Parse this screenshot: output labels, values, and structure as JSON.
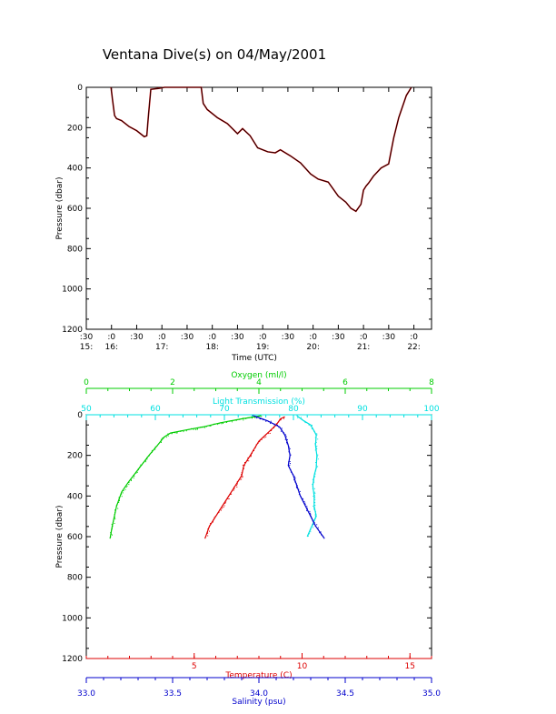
{
  "title": "Ventana Dive(s) on 04/May/2001",
  "colors": {
    "axis": "#000000",
    "trace_dark": "#000000",
    "trace_red": "#cc0000",
    "oxygen": "#00cc00",
    "light": "#00e0e0",
    "temperature": "#dd0000",
    "salinity": "#0000cc"
  },
  "chart_data": [
    {
      "type": "line",
      "title": "Ventana Dive(s) on 04/May/2001",
      "xlabel": "Time (UTC)",
      "ylabel": "Pressure (dbar)",
      "xlim": [
        15.5,
        22.35
      ],
      "ylim": [
        1200,
        0
      ],
      "yticks": [
        "0",
        "200",
        "400",
        "600",
        "800",
        "1000",
        "1200"
      ],
      "xticks_minute": [
        ":30",
        ":0",
        ":30",
        ":0",
        ":30",
        ":0",
        ":30",
        ":0",
        ":30",
        ":0",
        ":30",
        ":0",
        ":30",
        ":0"
      ],
      "xticks_hour": [
        "15:",
        "16:",
        "17:",
        "18:",
        "19:",
        "20:",
        "21:",
        "22:"
      ],
      "series": [
        {
          "x": [
            15.99,
            16.02,
            16.06,
            16.1,
            16.2,
            16.35,
            16.5,
            16.65,
            16.7,
            16.73,
            16.78,
            16.95,
            17.05,
            17.15,
            17.4,
            17.78,
            17.82,
            17.9,
            18.1,
            18.3,
            18.5,
            18.6,
            18.75,
            18.9,
            19.1,
            19.25,
            19.35,
            19.55,
            19.75,
            19.95,
            20.1,
            20.3,
            20.5,
            20.65,
            20.75,
            20.85,
            20.95,
            21.0,
            21.05,
            21.1,
            21.2,
            21.35,
            21.5,
            21.6,
            21.7,
            21.85,
            21.95
          ],
          "y": [
            0,
            60,
            140,
            155,
            165,
            195,
            215,
            245,
            240,
            150,
            10,
            5,
            0,
            -5,
            -5,
            0,
            80,
            110,
            150,
            180,
            230,
            205,
            240,
            300,
            320,
            325,
            310,
            340,
            375,
            430,
            455,
            470,
            540,
            570,
            600,
            615,
            580,
            510,
            490,
            475,
            440,
            400,
            380,
            250,
            150,
            40,
            0
          ]
        }
      ]
    },
    {
      "type": "scatter",
      "ylabel": "Pressure (dbar)",
      "ylim": [
        1200,
        0
      ],
      "yticks": [
        "0",
        "200",
        "400",
        "600",
        "800",
        "1000",
        "1200"
      ],
      "axes": {
        "oxygen": {
          "label": "Oxygen (ml/l)",
          "range": [
            0,
            8
          ],
          "ticks": [
            "0",
            "2",
            "4",
            "6",
            "8"
          ]
        },
        "light": {
          "label": "Light Transmission (%)",
          "range": [
            50,
            100
          ],
          "ticks": [
            "50",
            "60",
            "70",
            "80",
            "90",
            "100"
          ]
        },
        "temperature": {
          "label": "Temperature (C)",
          "range": [
            0,
            16
          ],
          "ticks": [
            "5",
            "10",
            "15"
          ]
        },
        "salinity": {
          "label": "Salinity (psu)",
          "range": [
            33.0,
            35.0
          ],
          "ticks": [
            "33.0",
            "33.5",
            "34.0",
            "34.5",
            "35.0"
          ]
        }
      },
      "series": [
        {
          "name": "Oxygen (ml/l)",
          "x": [
            4.05,
            3.6,
            3.1,
            2.7,
            2.3,
            1.95,
            1.8,
            1.65,
            1.45,
            1.2,
            0.98,
            0.82,
            0.7,
            0.6,
            0.55
          ],
          "y": [
            5,
            20,
            40,
            60,
            75,
            90,
            110,
            150,
            200,
            270,
            330,
            380,
            450,
            550,
            610
          ]
        },
        {
          "name": "Light Transmission (%)",
          "x": [
            80.5,
            81.5,
            82.5,
            83.0,
            83.3,
            83.2,
            83.4,
            83.3,
            83.0,
            82.8,
            83.0,
            83.0,
            83.3,
            82.5,
            82.0
          ],
          "y": [
            5,
            30,
            50,
            80,
            100,
            150,
            200,
            260,
            300,
            350,
            400,
            450,
            500,
            560,
            600
          ]
        },
        {
          "name": "Temperature (C)",
          "x": [
            9.2,
            9.0,
            8.8,
            8.5,
            8.0,
            7.6,
            7.3,
            7.2,
            6.9,
            6.6,
            6.3,
            6.0,
            5.7,
            5.5
          ],
          "y": [
            10,
            20,
            50,
            80,
            130,
            200,
            250,
            300,
            350,
            400,
            450,
            500,
            550,
            610
          ]
        },
        {
          "name": "Salinity (psu)",
          "x": [
            33.97,
            34.05,
            34.12,
            34.15,
            34.17,
            34.18,
            34.17,
            34.2,
            34.22,
            34.24,
            34.27,
            34.3,
            34.33,
            34.38
          ],
          "y": [
            5,
            30,
            60,
            100,
            150,
            200,
            250,
            300,
            350,
            400,
            450,
            500,
            550,
            610
          ]
        }
      ]
    }
  ]
}
